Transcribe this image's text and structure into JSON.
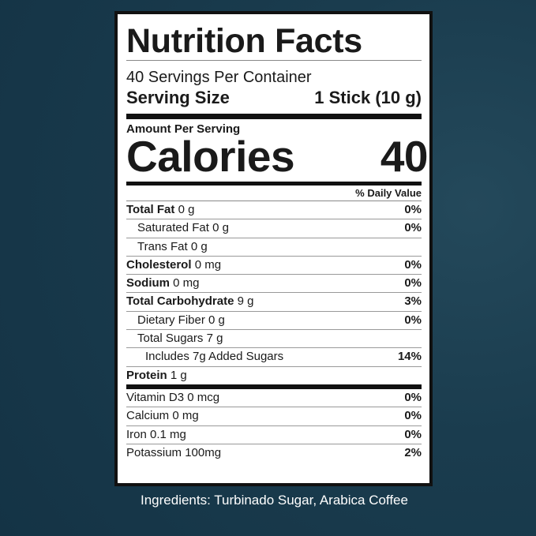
{
  "title": "Nutrition Facts",
  "servings": "40 Servings Per Container",
  "serving_size_label": "Serving Size",
  "serving_size_value": "1 Stick (10 g)",
  "amount_per_serving": "Amount Per Serving",
  "calories_label": "Calories",
  "calories_value": "40",
  "daily_value_header": "% Daily Value",
  "nutrients": [
    {
      "name": "Total Fat",
      "amount": "0 g",
      "dv": "0%",
      "bold": true,
      "indent": 0
    },
    {
      "name": "Saturated Fat",
      "amount": "0 g",
      "dv": "0%",
      "bold": false,
      "indent": 1
    },
    {
      "name": "Trans Fat",
      "amount": "0 g",
      "dv": "",
      "bold": false,
      "indent": 1
    },
    {
      "name": "Cholesterol",
      "amount": "0 mg",
      "dv": "0%",
      "bold": true,
      "indent": 0
    },
    {
      "name": "Sodium",
      "amount": "0 mg",
      "dv": "0%",
      "bold": true,
      "indent": 0
    },
    {
      "name": "Total Carbohydrate",
      "amount": "9 g",
      "dv": "3%",
      "bold": true,
      "indent": 0
    },
    {
      "name": "Dietary Fiber",
      "amount": "0 g",
      "dv": "0%",
      "bold": false,
      "indent": 1
    },
    {
      "name": "Total Sugars",
      "amount": "7 g",
      "dv": "",
      "bold": false,
      "indent": 1
    },
    {
      "name": "Includes 7g Added Sugars",
      "amount": "",
      "dv": "14%",
      "bold": false,
      "indent": 2
    },
    {
      "name": "Protein",
      "amount": "1 g",
      "dv": "",
      "bold": true,
      "indent": 0
    }
  ],
  "vitamins": [
    {
      "name": "Vitamin D3",
      "amount": "0 mcg",
      "dv": "0%"
    },
    {
      "name": "Calcium",
      "amount": "0 mg",
      "dv": "0%"
    },
    {
      "name": "Iron",
      "amount": "0.1 mg",
      "dv": "0%"
    },
    {
      "name": "Potassium",
      "amount": "100mg",
      "dv": "2%"
    }
  ],
  "ingredients": "Ingredients: Turbinado Sugar, Arabica Coffee",
  "colors": {
    "background": "#173a4c",
    "label": "#ffffff",
    "text": "#1a1a1a"
  }
}
